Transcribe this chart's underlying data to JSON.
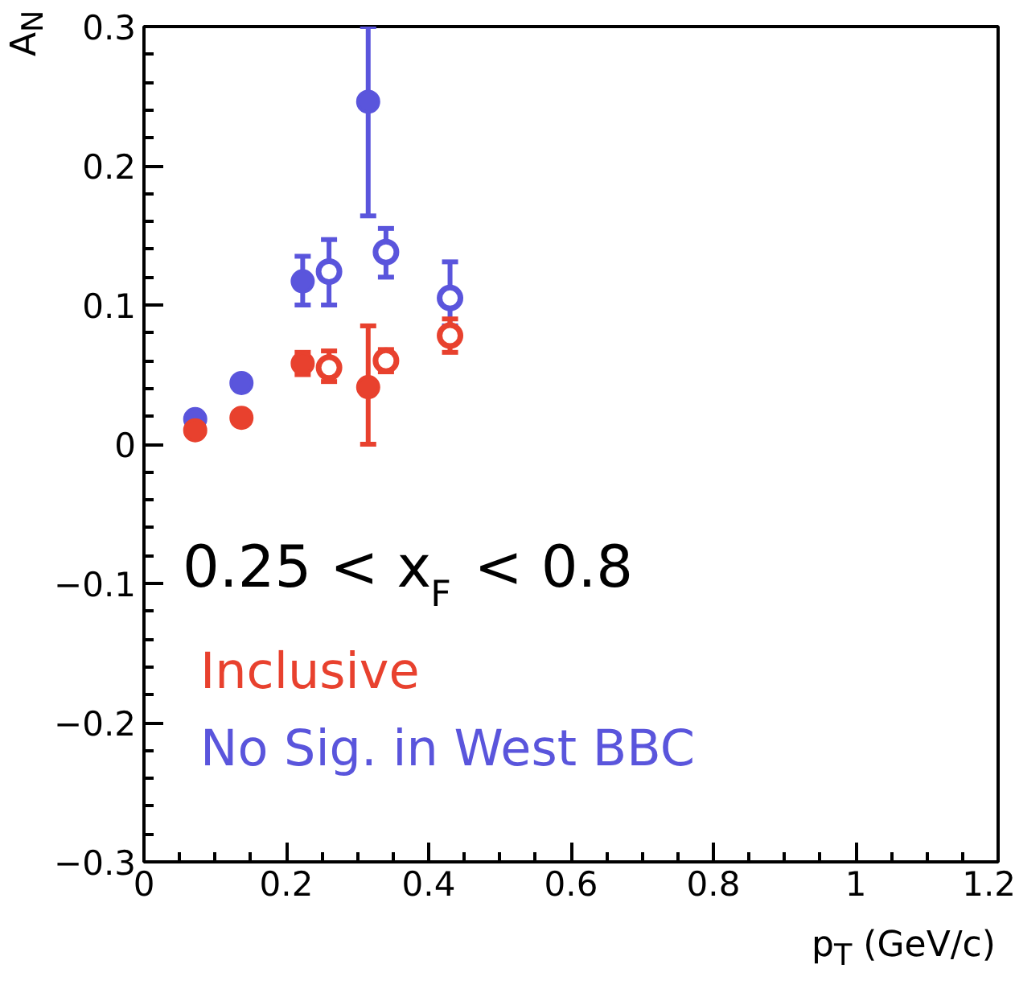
{
  "chart_data": {
    "type": "scatter",
    "xlabel": "p$_{T}$ (GeV/c)",
    "ylabel": "A$_{N}$",
    "xlim": [
      0,
      1.2
    ],
    "ylim": [
      -0.3,
      0.3
    ],
    "xticks": [
      0,
      0.2,
      0.4,
      0.6,
      0.8,
      1,
      1.2
    ],
    "yticks": [
      -0.3,
      -0.2,
      -0.1,
      0,
      0.1,
      0.2,
      0.3
    ],
    "grid": false,
    "legend": false,
    "marker": "circle",
    "series": [
      {
        "name": "No Sig. in West BBC",
        "color": "#5a55dc",
        "x": [
          0.072,
          0.137,
          0.223,
          0.315
        ],
        "values": [
          0.018,
          0.044,
          0.117,
          0.246
        ],
        "errors": [
          null,
          null,
          [
            0.1,
            0.135
          ],
          [
            0.164,
            0.3
          ]
        ]
      },
      {
        "color": "#5a55dc",
        "marker": "circle_open",
        "x": [
          0.26,
          0.34,
          0.43
        ],
        "values": [
          0.124,
          0.138,
          0.105
        ],
        "errors": [
          [
            0.1,
            0.147
          ],
          [
            0.12,
            0.155
          ],
          [
            0.085,
            0.131
          ]
        ]
      },
      {
        "name": "Inclusive",
        "color": "#e8412e",
        "x": [
          0.072,
          0.137,
          0.223,
          0.315
        ],
        "values": [
          0.01,
          0.019,
          0.058,
          0.041
        ],
        "errors": [
          null,
          null,
          [
            0.05,
            0.066
          ],
          [
            0,
            0.085
          ]
        ]
      },
      {
        "color": "#e8412e",
        "marker": "circle_open",
        "x": [
          0.26,
          0.34,
          0.43
        ],
        "values": [
          0.055,
          0.06,
          0.078
        ],
        "errors": [
          [
            0.045,
            0.067
          ],
          [
            0.052,
            0.068
          ],
          [
            0.066,
            0.09
          ]
        ]
      }
    ],
    "annotations": [
      "0.25 < x$_{F}$ < 0.8"
    ]
  }
}
